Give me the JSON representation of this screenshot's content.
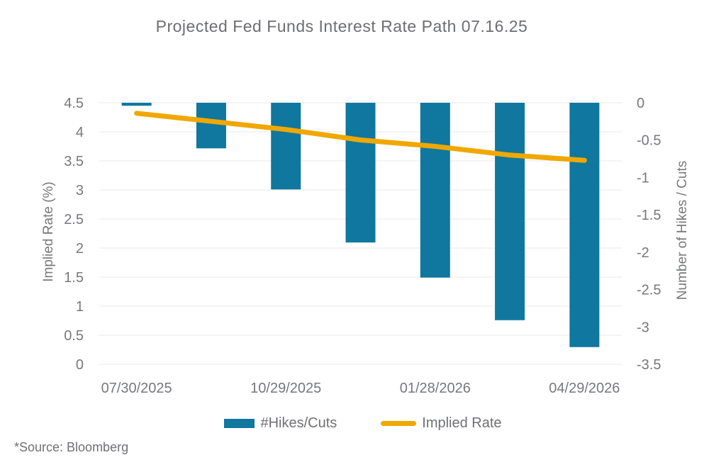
{
  "header": {
    "title": "Projected Fed Funds Interest Rate Path 07.16.25"
  },
  "footer": {
    "source": "*Source: Bloomberg"
  },
  "legend": {
    "items": [
      {
        "label": "#Hikes/Cuts",
        "swatch": "bar",
        "color": "#10779e"
      },
      {
        "label": "Implied Rate",
        "swatch": "line",
        "color": "#f0a800"
      }
    ]
  },
  "colors": {
    "bar": "#10779e",
    "line": "#f0a800",
    "grid": "#e9e9e9",
    "text": "#77787b",
    "title": "#6d6e71"
  },
  "chart_data": {
    "type": "combo",
    "title": "Projected Fed Funds Interest Rate Path 07.16.25",
    "categories": [
      "07/30/2025",
      "",
      "10/29/2025",
      "",
      "01/28/2026",
      "",
      "04/29/2026"
    ],
    "series": [
      {
        "name": "#Hikes/Cuts",
        "type": "bar",
        "axis": "right",
        "color": "#10779e",
        "values": [
          -0.04,
          -0.61,
          -1.16,
          -1.87,
          -2.34,
          -2.91,
          -3.27
        ]
      },
      {
        "name": "Implied Rate",
        "type": "line",
        "axis": "left",
        "color": "#f0a800",
        "values": [
          4.32,
          4.18,
          4.04,
          3.86,
          3.75,
          3.6,
          3.51
        ]
      }
    ],
    "left_axis": {
      "label": "Implied Rate (%)",
      "min": 0,
      "max": 4.5,
      "ticks": [
        "4.5",
        "4",
        "3.5",
        "3",
        "2.5",
        "2",
        "1.5",
        "1",
        "0.5",
        "0"
      ]
    },
    "right_axis": {
      "label": "Number of Hikes / Cuts",
      "min": -3.5,
      "max": 0,
      "ticks": [
        "0",
        "-0.5",
        "-1",
        "-1.5",
        "-2",
        "-2.5",
        "-3",
        "-3.5"
      ]
    },
    "grid": "horizontal",
    "legend_position": "bottom"
  }
}
